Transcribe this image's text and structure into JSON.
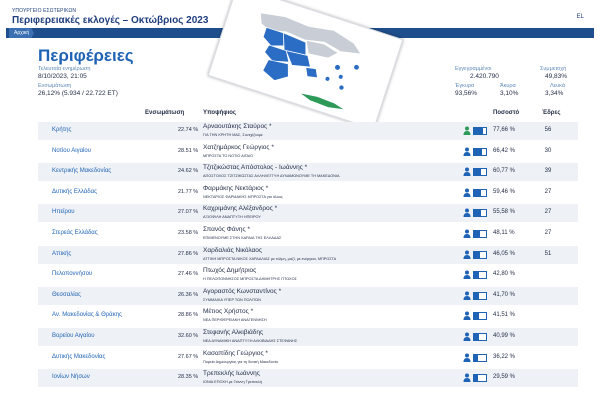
{
  "header": {
    "ministry": "ΥΠΟΥΡΓΕΙΟ ΕΣΩΤΕΡΙΚΩΝ",
    "title": "Περιφερειακές εκλογές – Οκτώβριος 2023",
    "language": "EL"
  },
  "nav": {
    "home": "Αρχική"
  },
  "page_title": "Περιφέρειες",
  "stats": {
    "last_update_label": "Τελευταία ενημέρωση",
    "last_update_value": "8/10/2023, 21:05",
    "integration_label": "Ενσωμάτωση",
    "integration_value": "26,12% (5.934 / 22.722 ΕΤ)",
    "registered_label": "Εγγεγραμμένοι",
    "registered_value": "2.420.790",
    "turnout_label": "Συμμετοχή",
    "turnout_value": "49,83%",
    "valid_label": "Έγκυρα",
    "valid_value": "93,56%",
    "invalid_label": "Άκυρα",
    "invalid_value": "3,10%",
    "blank_label": "Λευκά",
    "blank_value": "3,34%"
  },
  "colors": {
    "accent": "#1e63b5",
    "navbar": "#1f4e8c",
    "map_base": "#c9ced6",
    "map_blue": "#2b6cc4",
    "map_green": "#2e9a5a"
  },
  "table": {
    "headers": {
      "integration": "Ενσωμάτωση",
      "candidate": "Υποψήφιος",
      "percentage": "Ποσοστό",
      "seats": "Έδρες"
    },
    "rows": [
      {
        "region": "Κρήτης",
        "turnout": "22.74 %",
        "candidate": "Αρναουτάκης Σταύρος *",
        "party": "ΓΙΑ ΤΗΝ ΚΡΗΤΗ ΜΑΣ, Συνεχίζουμε",
        "pct": "77,66 %",
        "pct_value": 77.66,
        "seats": "56",
        "person_color": "#2e9a5a"
      },
      {
        "region": "Νοτίου Αιγαίου",
        "turnout": "28.51 %",
        "candidate": "Χατζημάρκος Γεώργιος *",
        "party": "ΜΠΡΟΣΤΑ ΤΟ ΝΟΤΙΟ ΑΙΓΑΙΟ",
        "pct": "66,42 %",
        "pct_value": 66.42,
        "seats": "30",
        "person_color": "#1e63b5"
      },
      {
        "region": "Κεντρικής Μακεδονίας",
        "turnout": "24.62 %",
        "candidate": "Τζιτζικώστας Απόστολος - Ιωάννης *",
        "party": "ΑΠΟΣΤΟΛΟΣ ΤΖΙΤΖΙΚΩΣΤΑΣ ΑΛΛΗΛΕΓΓΥΗ ΔΥΝΑΜΩΝΟΥΜΕ ΤΗ ΜΑΚΕΔΟΝΙΑ",
        "pct": "60,77 %",
        "pct_value": 60.77,
        "seats": "39",
        "person_color": "#1e63b5"
      },
      {
        "region": "Δυτικής Ελλάδας",
        "turnout": "21.77 %",
        "candidate": "Φαρμάκης Νεκτάριος *",
        "party": "ΝΕΚΤΑΡΙΟΣ ΦΑΡΜΑΚΗΣ ΜΠΡΟΣΤΑ για όλους",
        "pct": "59,46 %",
        "pct_value": 59.46,
        "seats": "27",
        "person_color": "#1e63b5"
      },
      {
        "region": "Ηπείρου",
        "turnout": "27.07 %",
        "candidate": "Καχριμάνης Αλέξανδρος *",
        "party": "ΑΞΙΟΦΙΛΗ ΑΝΑΠΤΥΞΗ ΗΠΕΙΡΟΥ",
        "pct": "55,58 %",
        "pct_value": 55.58,
        "seats": "27",
        "person_color": "#1e63b5"
      },
      {
        "region": "Στερεάς Ελλάδας",
        "turnout": "23.58 %",
        "candidate": "Σπανός Φάνης *",
        "party": "ΕΠΙΜΕΝΟΥΜΕ ΣΤΗΝ ΚΑΡΔΙΑ ΤΗΣ ΕΛΛΑΔΑΣ",
        "pct": "48,11 %",
        "pct_value": 48.11,
        "seats": "27",
        "person_color": "#1e63b5"
      },
      {
        "region": "Αττικής",
        "turnout": "27.86 %",
        "candidate": "Χαρδαλιάς Νικόλαος",
        "party": "ΑΤΤΙΚΗ ΜΠΡΟΣΤΑ ΝΙΚΟΣ ΧΑΡΔΑΛΙΑΣ με τόλμη, μαζί, με ενέργεια, ΜΠΡΟΣΤΑ",
        "pct": "46,05 %",
        "pct_value": 46.05,
        "seats": "51",
        "person_color": "#1e63b5"
      },
      {
        "region": "Πελοποννήσου",
        "turnout": "27.46 %",
        "candidate": "Πτωχός Δημήτριος",
        "party": "Η ΠΕΛΟΠΟΝΝΗΣΟΣ ΜΠΡΟΣΤΑ ΔΗΜΗΤΡΗΣ ΠΤΩΧΟΣ",
        "pct": "42,80 %",
        "pct_value": 42.8,
        "seats": "",
        "person_color": "#1e63b5"
      },
      {
        "region": "Θεσσαλίας",
        "turnout": "26.36 %",
        "candidate": "Αγοραστός Κωνσταντίνος *",
        "party": "ΣΥΜΜΑΧΙΑ ΥΠΕΡ ΤΩΝ ΠΟΛΙΤΩΝ",
        "pct": "41,70 %",
        "pct_value": 41.7,
        "seats": "",
        "person_color": "#1e63b5"
      },
      {
        "region": "Αν. Μακεδονίας & Θράκης",
        "turnout": "28.86 %",
        "candidate": "Μέτιος Χρήστος *",
        "party": "ΝΕΑ ΠΕΡΙΦΕΡΕΙΑΚΗ ΑΝΑΓΕΝΝΗΣΗ",
        "pct": "41,51 %",
        "pct_value": 41.51,
        "seats": "",
        "person_color": "#1e63b5"
      },
      {
        "region": "Βορείου Αιγαίου",
        "turnout": "32.60 %",
        "candidate": "Στεφανής Αλκιβιάδης",
        "party": "ΝΕΑ ΔΥΝΑΜΙΚΗ ΑΝΑΠΤΥΞΗ ΑΛΚΙΒΙΑΔΗΣ ΣΤΕΦΑΝΗΣ",
        "pct": "40,99 %",
        "pct_value": 40.99,
        "seats": "",
        "person_color": "#1e63b5"
      },
      {
        "region": "Δυτικής Μακεδονίας",
        "turnout": "27.67 %",
        "candidate": "Κασαπίδης Γεώργιος *",
        "party": "Πορεία Δημιουργίας για τη δυτική Μακεδονία",
        "pct": "36,22 %",
        "pct_value": 36.22,
        "seats": "",
        "person_color": "#1e63b5"
      },
      {
        "region": "Ιονίων Νήσων",
        "turnout": "28.35 %",
        "candidate": "Τρεπεκλής Ιωάννης",
        "party": "ΙΟΝΙΑ ΕΠΟΧΗ με Γιάννη Τρεπεκλή",
        "pct": "29,59 %",
        "pct_value": 29.59,
        "seats": "",
        "person_color": "#1e63b5"
      }
    ]
  }
}
